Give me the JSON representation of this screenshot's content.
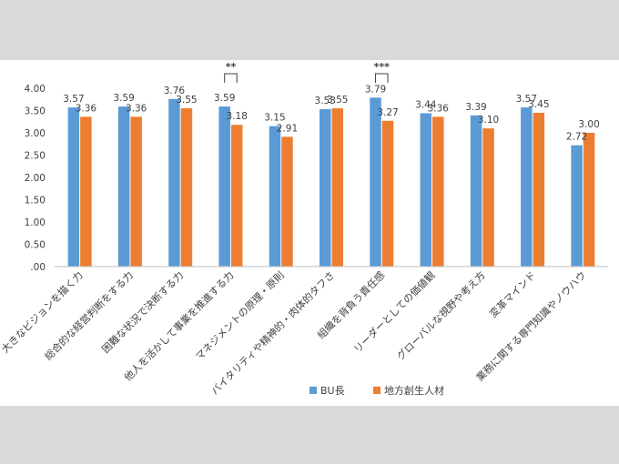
{
  "chart_data": {
    "type": "bar",
    "title": "",
    "xlabel": "",
    "ylabel": "",
    "ylim": [
      0,
      4
    ],
    "yticks": [
      ".00",
      "0.50",
      "1.00",
      "1.50",
      "2.00",
      "2.50",
      "3.00",
      "3.50",
      "4.00"
    ],
    "ytick_values": [
      0,
      0.5,
      1,
      1.5,
      2,
      2.5,
      3,
      3.5,
      4
    ],
    "grid": false,
    "legend_position": "bottom",
    "categories": [
      "大きなビジョンを描く力",
      "総合的な経営判断をする力",
      "困難な状況で決断する力",
      "他人を活かして事業を推進する力",
      "マネジメントの原理・原則",
      "バイタリティや精神的・肉体的タフさ",
      "組織を背負う責任感",
      "リーダーとしての価値観",
      "グローバルな視野や考え方",
      "変革マインド",
      "業務に関する専門知識やノウハウ"
    ],
    "series": [
      {
        "name": "BU長",
        "color": "#5b9bd5",
        "values": [
          3.57,
          3.59,
          3.76,
          3.59,
          3.15,
          3.53,
          3.79,
          3.44,
          3.39,
          3.57,
          2.72
        ],
        "labels": [
          "3.57",
          "3.59",
          "3.76",
          "3.59",
          "3.15",
          "3.53",
          "3.79",
          "3.44",
          "3.39",
          "3.57",
          "2.72"
        ]
      },
      {
        "name": "地方創生人材",
        "color": "#ed7d31",
        "values": [
          3.36,
          3.36,
          3.55,
          3.18,
          2.91,
          3.55,
          3.27,
          3.36,
          3.1,
          3.45,
          3.0
        ],
        "labels": [
          "3.36",
          "3.36",
          "3.55",
          "3.18",
          "2.91",
          "3.55",
          "3.27",
          "3.36",
          "3.10",
          "3.45",
          "3.00"
        ]
      }
    ],
    "annotations": [
      {
        "category_index": 3,
        "text": "**"
      },
      {
        "category_index": 6,
        "text": "***"
      }
    ]
  }
}
